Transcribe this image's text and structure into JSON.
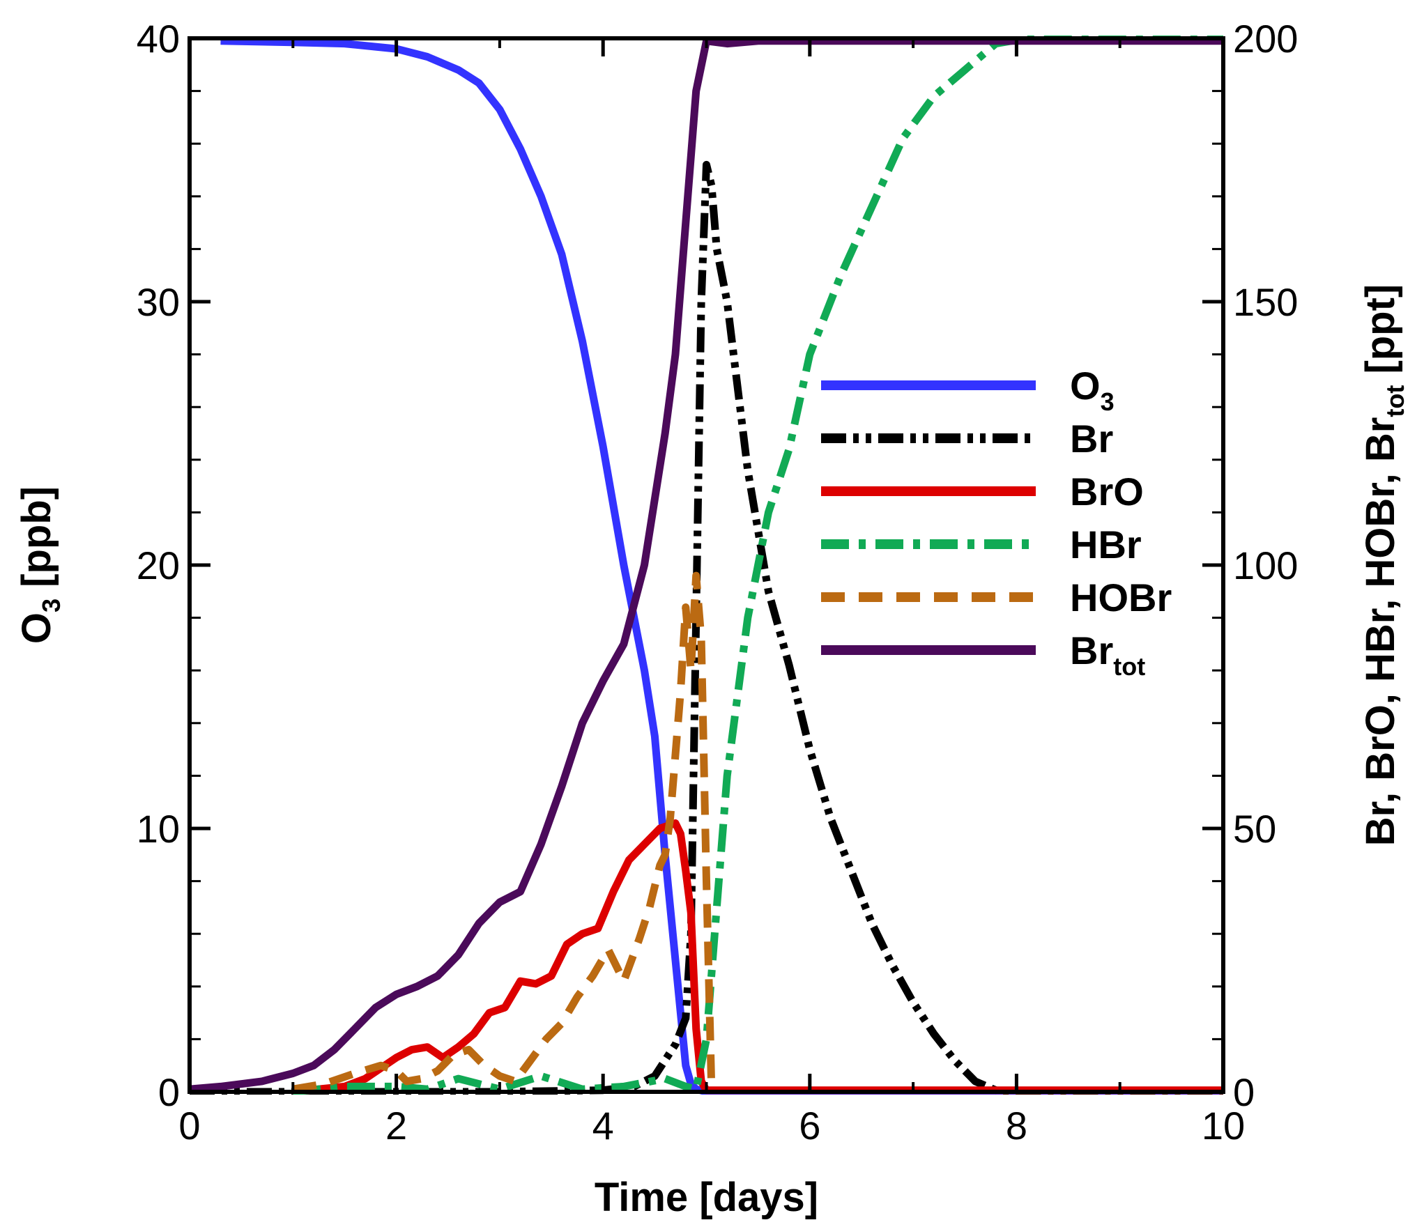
{
  "chart_data": {
    "type": "line",
    "title": "",
    "xlabel": "Time [days]",
    "ylabel_left": {
      "main": "O",
      "sub": "3",
      "rest": " [ppb]"
    },
    "ylabel_right": {
      "parts": [
        {
          "t": "Br, BrO, HBr, HOBr, Br",
          "sub": false
        },
        {
          "t": "tot",
          "sub": true
        },
        {
          "t": " [ppt]",
          "sub": false
        }
      ]
    },
    "xlim": [
      0,
      10
    ],
    "ylim_left": [
      0,
      40
    ],
    "ylim_right": [
      0,
      200
    ],
    "xticks": [
      "0",
      "2",
      "4",
      "6",
      "8",
      "10"
    ],
    "yticks_left": [
      "0",
      "10",
      "20",
      "30",
      "40"
    ],
    "yticks_right": [
      "0",
      "50",
      "100",
      "150",
      "200"
    ],
    "grid": false,
    "legend_position": "center-right",
    "series": [
      {
        "name": "O3",
        "label_main": "O",
        "label_sub": "3",
        "axis": "left",
        "color": "#3333ff",
        "dash": "solid",
        "x": [
          0.3,
          1.0,
          1.5,
          2.0,
          2.3,
          2.6,
          2.8,
          3.0,
          3.2,
          3.4,
          3.6,
          3.8,
          4.0,
          4.2,
          4.4,
          4.5,
          4.6,
          4.7,
          4.8,
          4.85,
          4.9,
          5.0,
          10.0
        ],
        "y": [
          39.9,
          39.85,
          39.8,
          39.6,
          39.3,
          38.8,
          38.3,
          37.3,
          35.8,
          34.0,
          31.8,
          28.5,
          24.5,
          20.0,
          16.0,
          13.5,
          9.0,
          5.0,
          1.0,
          0.3,
          0.1,
          0.0,
          0.0
        ]
      },
      {
        "name": "Br",
        "label_main": "Br",
        "label_sub": "",
        "axis": "right",
        "color": "#000000",
        "dash": "dash-dot-dot",
        "x": [
          0,
          1.0,
          2.0,
          3.0,
          4.0,
          4.3,
          4.5,
          4.6,
          4.7,
          4.8,
          4.85,
          4.9,
          4.95,
          5.0,
          5.05,
          5.1,
          5.2,
          5.4,
          5.6,
          5.8,
          6.0,
          6.2,
          6.4,
          6.6,
          6.8,
          7.0,
          7.2,
          7.4,
          7.6,
          7.8,
          8.0,
          10.0
        ],
        "y": [
          0,
          0,
          0,
          0,
          0.3,
          1.0,
          3.0,
          6.0,
          9.0,
          14.0,
          30.0,
          90.0,
          150.0,
          176.0,
          172.0,
          160.0,
          150.0,
          118.0,
          95.0,
          81.0,
          65.0,
          52.0,
          42.0,
          32.0,
          24.0,
          17.0,
          11.0,
          6.0,
          2.0,
          0.3,
          0,
          0
        ]
      },
      {
        "name": "BrO",
        "label_main": "BrO",
        "label_sub": "",
        "axis": "right",
        "color": "#dd0000",
        "dash": "solid",
        "x": [
          1.0,
          1.5,
          1.7,
          1.85,
          2.0,
          2.15,
          2.3,
          2.45,
          2.6,
          2.75,
          2.9,
          3.05,
          3.2,
          3.35,
          3.5,
          3.65,
          3.8,
          3.95,
          4.1,
          4.25,
          4.4,
          4.55,
          4.7,
          4.75,
          4.8,
          4.85,
          4.9,
          4.95,
          5.0,
          10.0
        ],
        "y": [
          0,
          1.0,
          2.5,
          4.5,
          6.5,
          8.0,
          8.5,
          6.5,
          8.5,
          11.0,
          15.0,
          16.0,
          21.0,
          20.5,
          22.0,
          28.0,
          30.0,
          31.0,
          38.0,
          44.0,
          47.0,
          50.0,
          51.0,
          49.0,
          42.0,
          34.0,
          12.0,
          2.0,
          0.3,
          0.3
        ]
      },
      {
        "name": "HBr",
        "label_main": "HBr",
        "label_sub": "",
        "axis": "right",
        "color": "#11aa55",
        "dash": "dash-dot",
        "x": [
          1.0,
          1.5,
          2.0,
          2.3,
          2.6,
          3.0,
          3.4,
          3.8,
          4.2,
          4.6,
          4.8,
          4.9,
          5.0,
          5.1,
          5.2,
          5.4,
          5.6,
          5.8,
          6.0,
          6.3,
          6.6,
          6.9,
          7.2,
          7.5,
          7.8,
          8.1,
          10.0
        ],
        "y": [
          0,
          1.0,
          1.0,
          0.5,
          2.5,
          0.5,
          3.0,
          0.5,
          1.0,
          2.5,
          1.0,
          0.5,
          10.0,
          35.0,
          60.0,
          90.0,
          110.0,
          122.0,
          140.0,
          155.0,
          168.0,
          181.0,
          189.0,
          194.0,
          199.0,
          200.0,
          200.0
        ]
      },
      {
        "name": "HOBr",
        "label_main": "HOBr",
        "label_sub": "",
        "axis": "right",
        "color": "#bb6a12",
        "dash": "dashed",
        "x": [
          1.0,
          1.3,
          1.6,
          1.85,
          2.0,
          2.1,
          2.25,
          2.4,
          2.55,
          2.7,
          2.85,
          3.0,
          3.15,
          3.3,
          3.45,
          3.6,
          3.75,
          3.9,
          4.05,
          4.2,
          4.35,
          4.45,
          4.55,
          4.6,
          4.65,
          4.7,
          4.75,
          4.8,
          4.85,
          4.9,
          4.95,
          5.0,
          5.05
        ],
        "y": [
          0.5,
          1.5,
          3.5,
          5.0,
          4.0,
          2.0,
          2.5,
          4.0,
          7.0,
          8.0,
          5.0,
          3.0,
          2.0,
          6.0,
          10.0,
          13.0,
          18.0,
          22.0,
          27.0,
          21.0,
          29.0,
          35.0,
          43.0,
          45.0,
          52.0,
          64.0,
          76.0,
          92.0,
          80.0,
          98.0,
          86.0,
          40.0,
          0.0
        ]
      },
      {
        "name": "Brtot",
        "label_main": "Br",
        "label_sub": "tot",
        "axis": "right",
        "color": "#4b0a5a",
        "dash": "solid",
        "x": [
          0.0,
          0.3,
          0.7,
          1.0,
          1.2,
          1.4,
          1.6,
          1.8,
          2.0,
          2.2,
          2.4,
          2.6,
          2.8,
          3.0,
          3.2,
          3.4,
          3.6,
          3.8,
          4.0,
          4.2,
          4.4,
          4.6,
          4.7,
          4.8,
          4.9,
          5.0,
          5.2,
          5.5,
          6.0,
          7.0,
          8.0,
          10.0
        ],
        "y": [
          0.5,
          1.0,
          2.0,
          3.5,
          5.0,
          8.0,
          12.0,
          16.0,
          18.5,
          20.0,
          22.0,
          26.0,
          32.0,
          36.0,
          38.0,
          47.0,
          58.0,
          70.0,
          78.0,
          85.0,
          100.0,
          125.0,
          140.0,
          165.0,
          190.0,
          199.5,
          199.0,
          199.5,
          199.5,
          199.5,
          199.5,
          199.5
        ]
      }
    ]
  }
}
